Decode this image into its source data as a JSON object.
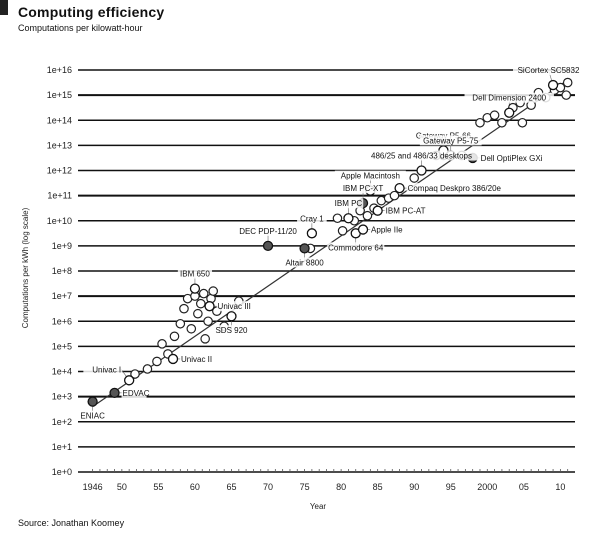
{
  "chart_data": {
    "type": "scatter",
    "title": "Computing efficiency",
    "subtitle": "Computations per kilowatt-hour",
    "xlabel": "Year",
    "ylabel": "Computations per kWh (log scale)",
    "source": "Source: Jonathan Koomey",
    "xlim": [
      1944,
      2012
    ],
    "ylim": [
      1,
      1e+16
    ],
    "y_scale": "log",
    "grid": true,
    "x_ticks": [
      {
        "value": 1946,
        "label": "1946"
      },
      {
        "value": 1950,
        "label": "50"
      },
      {
        "value": 1955,
        "label": "55"
      },
      {
        "value": 1960,
        "label": "60"
      },
      {
        "value": 1965,
        "label": "65"
      },
      {
        "value": 1970,
        "label": "70"
      },
      {
        "value": 1975,
        "label": "75"
      },
      {
        "value": 1980,
        "label": "80"
      },
      {
        "value": 1985,
        "label": "85"
      },
      {
        "value": 1990,
        "label": "90"
      },
      {
        "value": 1995,
        "label": "95"
      },
      {
        "value": 2000,
        "label": "2000"
      },
      {
        "value": 2005,
        "label": "05"
      },
      {
        "value": 2010,
        "label": "10"
      }
    ],
    "y_ticks": [
      {
        "exp": 0,
        "label": "1e+0"
      },
      {
        "exp": 1,
        "label": "1e+1"
      },
      {
        "exp": 2,
        "label": "1e+2"
      },
      {
        "exp": 3,
        "label": "1e+3"
      },
      {
        "exp": 4,
        "label": "1e+4"
      },
      {
        "exp": 5,
        "label": "1e+5"
      },
      {
        "exp": 6,
        "label": "1e+6"
      },
      {
        "exp": 7,
        "label": "1e+7"
      },
      {
        "exp": 8,
        "label": "1e+8"
      },
      {
        "exp": 9,
        "label": "1e+9"
      },
      {
        "exp": 10,
        "label": "1e+10"
      },
      {
        "exp": 11,
        "label": "1e+11"
      },
      {
        "exp": 12,
        "label": "1e+12"
      },
      {
        "exp": 13,
        "label": "1e+13"
      },
      {
        "exp": 14,
        "label": "1e+14"
      },
      {
        "exp": 15,
        "label": "1e+15"
      },
      {
        "exp": 16,
        "label": "1e+16"
      }
    ],
    "trend": {
      "x": [
        1946,
        2011
      ],
      "log10y": [
        2.6,
        15.6
      ]
    },
    "labeled_points": [
      {
        "label": "ENIAC",
        "x": 1946,
        "log10y": 2.8,
        "filled": true,
        "side": "below"
      },
      {
        "label": "EDVAC",
        "x": 1949,
        "log10y": 3.15,
        "filled": true,
        "side": "right"
      },
      {
        "label": "Univac I",
        "x": 1951,
        "log10y": 3.65,
        "filled": false,
        "side": "left"
      },
      {
        "label": "Univac II",
        "x": 1957,
        "log10y": 4.5,
        "filled": false,
        "side": "right"
      },
      {
        "label": "IBM 650",
        "x": 1960,
        "log10y": 7.3,
        "filled": false,
        "side": "above"
      },
      {
        "label": "Univac III",
        "x": 1962,
        "log10y": 6.6,
        "filled": false,
        "side": "right"
      },
      {
        "label": "SDS 920",
        "x": 1965,
        "log10y": 6.2,
        "filled": false,
        "side": "below"
      },
      {
        "label": "DEC PDP-11/20",
        "x": 1970,
        "log10y": 9.0,
        "filled": true,
        "side": "above"
      },
      {
        "label": "Altair 8800",
        "x": 1975,
        "log10y": 8.9,
        "filled": true,
        "side": "below"
      },
      {
        "label": "Cray 1",
        "x": 1976,
        "log10y": 9.5,
        "filled": false,
        "side": "above"
      },
      {
        "label": "IBM PC",
        "x": 1981,
        "log10y": 10.1,
        "filled": false,
        "side": "above"
      },
      {
        "label": "Commodore 64",
        "x": 1982,
        "log10y": 9.5,
        "filled": false,
        "side": "below"
      },
      {
        "label": "Apple IIe",
        "x": 1983,
        "log10y": 9.65,
        "filled": false,
        "side": "right"
      },
      {
        "label": "IBM PC-XT",
        "x": 1983,
        "log10y": 10.7,
        "filled": true,
        "side": "above"
      },
      {
        "label": "Apple Macintosh",
        "x": 1984,
        "log10y": 11.2,
        "filled": false,
        "side": "above"
      },
      {
        "label": "IBM PC-AT",
        "x": 1985,
        "log10y": 10.4,
        "filled": false,
        "side": "right"
      },
      {
        "label": "Compaq Deskpro 386/20e",
        "x": 1988,
        "log10y": 11.3,
        "filled": false,
        "side": "right"
      },
      {
        "label": "486/25 and 486/33 desktops",
        "x": 1991,
        "log10y": 12.0,
        "filled": false,
        "side": "above"
      },
      {
        "label": "Gateway P5-66",
        "x": 1994,
        "log10y": 12.8,
        "filled": false,
        "side": "above"
      },
      {
        "label": "Gateway P5-75",
        "x": 1995,
        "log10y": 12.6,
        "filled": false,
        "side": "above"
      },
      {
        "label": "Dell OptiPlex GXi",
        "x": 1998,
        "log10y": 12.5,
        "filled": true,
        "side": "right"
      },
      {
        "label": "Dell Dimension 2400",
        "x": 2003,
        "log10y": 14.3,
        "filled": false,
        "side": "above"
      },
      {
        "label": "SiCortex SC5832",
        "x": 2009,
        "log10y": 15.4,
        "filled": false,
        "side": "above"
      }
    ],
    "points": [
      {
        "x": 1951.8,
        "log10y": 3.9
      },
      {
        "x": 1953.5,
        "log10y": 4.1
      },
      {
        "x": 1954.8,
        "log10y": 4.4
      },
      {
        "x": 1955.5,
        "log10y": 5.1
      },
      {
        "x": 1956.3,
        "log10y": 4.7
      },
      {
        "x": 1957.2,
        "log10y": 5.4
      },
      {
        "x": 1958.0,
        "log10y": 5.9
      },
      {
        "x": 1958.5,
        "log10y": 6.5
      },
      {
        "x": 1959.0,
        "log10y": 6.9
      },
      {
        "x": 1959.5,
        "log10y": 5.7
      },
      {
        "x": 1960.0,
        "log10y": 7.0
      },
      {
        "x": 1960.4,
        "log10y": 6.3
      },
      {
        "x": 1960.8,
        "log10y": 6.7
      },
      {
        "x": 1961.2,
        "log10y": 7.1
      },
      {
        "x": 1961.4,
        "log10y": 5.3
      },
      {
        "x": 1961.8,
        "log10y": 6.0
      },
      {
        "x": 1962.2,
        "log10y": 6.9
      },
      {
        "x": 1962.5,
        "log10y": 7.2
      },
      {
        "x": 1963.0,
        "log10y": 6.4
      },
      {
        "x": 1964.0,
        "log10y": 5.8
      },
      {
        "x": 1966.0,
        "log10y": 6.8
      },
      {
        "x": 1975.8,
        "log10y": 8.9
      },
      {
        "x": 1979.5,
        "log10y": 10.1
      },
      {
        "x": 1980.2,
        "log10y": 9.6
      },
      {
        "x": 1981.8,
        "log10y": 10.0
      },
      {
        "x": 1982.6,
        "log10y": 10.4
      },
      {
        "x": 1983.6,
        "log10y": 10.2
      },
      {
        "x": 1984.5,
        "log10y": 10.5
      },
      {
        "x": 1985.5,
        "log10y": 10.8
      },
      {
        "x": 1986.5,
        "log10y": 10.9
      },
      {
        "x": 1987.3,
        "log10y": 11.0
      },
      {
        "x": 1990.0,
        "log10y": 11.7
      },
      {
        "x": 1993.0,
        "log10y": 12.6
      },
      {
        "x": 1994.0,
        "log10y": 12.6
      },
      {
        "x": 1996.5,
        "log10y": 12.6
      },
      {
        "x": 1999.0,
        "log10y": 13.9
      },
      {
        "x": 2000.0,
        "log10y": 14.1
      },
      {
        "x": 2001.0,
        "log10y": 14.2
      },
      {
        "x": 2002.0,
        "log10y": 13.9
      },
      {
        "x": 2003.5,
        "log10y": 14.5
      },
      {
        "x": 2004.5,
        "log10y": 14.7
      },
      {
        "x": 2004.8,
        "log10y": 13.9
      },
      {
        "x": 2006.0,
        "log10y": 14.6
      },
      {
        "x": 2007.0,
        "log10y": 15.1
      },
      {
        "x": 2008.0,
        "log10y": 14.9
      },
      {
        "x": 2009.2,
        "log10y": 15.2
      },
      {
        "x": 2010.0,
        "log10y": 15.3
      },
      {
        "x": 2010.8,
        "log10y": 15.0
      },
      {
        "x": 2011.0,
        "log10y": 15.5
      }
    ]
  }
}
